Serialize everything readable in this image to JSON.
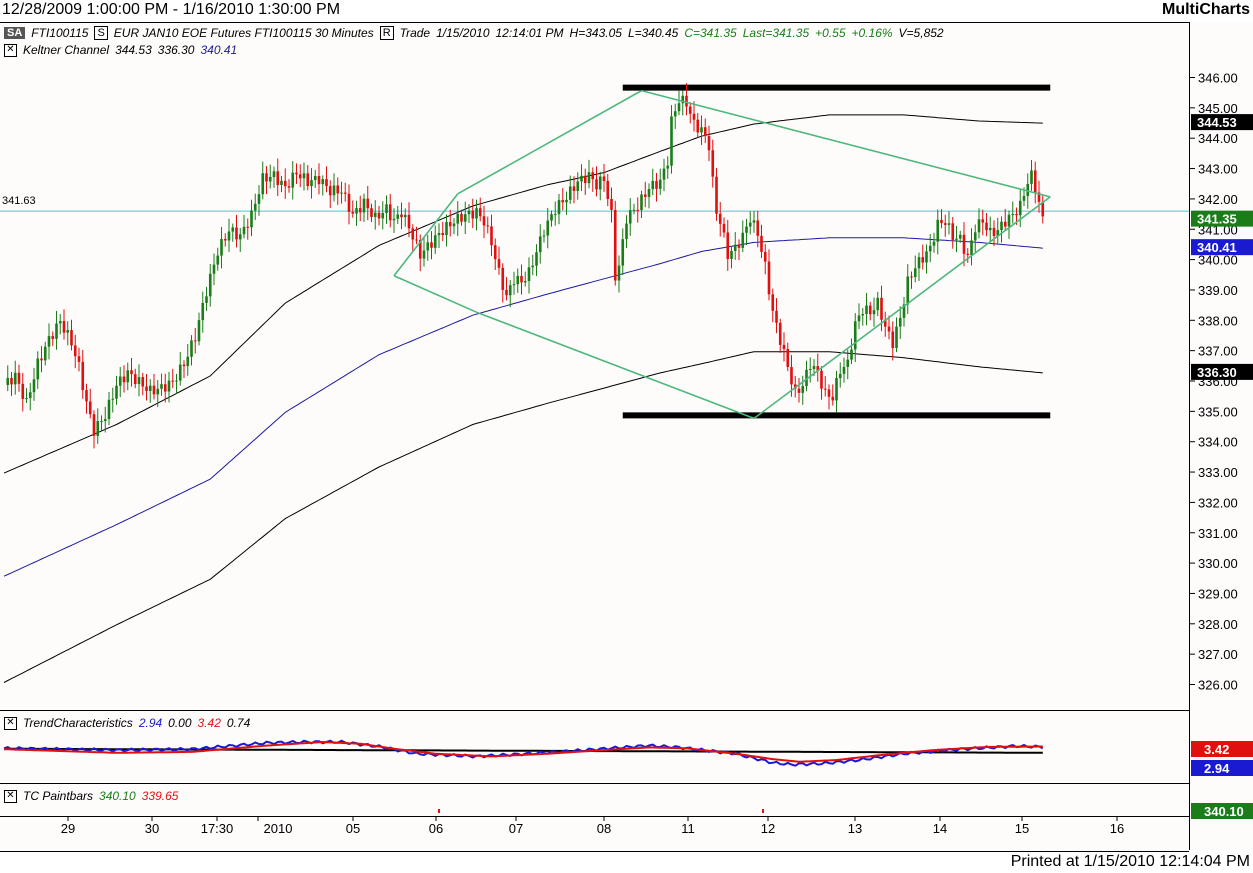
{
  "window": {
    "title_range": "12/28/2009 1:00:00 PM - 1/16/2010 1:30:00 PM",
    "app_name": "MultiCharts",
    "printed": "Printed at 1/15/2010 12:14:04 PM"
  },
  "header": {
    "sa_label": "SA",
    "symbol": "FTI100115",
    "symbol_btn": "S",
    "description": "EUR JAN10 EOE Futures FTI100115  30 Minutes",
    "range_btn": "R",
    "quote_type": "Trade",
    "quote_date": "1/15/2010",
    "quote_time": "12:14:01 PM",
    "high": "H=343.05",
    "low": "L=340.45",
    "close": "C=341.35",
    "last": "Last=341.35",
    "change": "+0.55",
    "change_pct": "+0.16%",
    "volume": "V=5,852"
  },
  "indicators": {
    "keltner": {
      "name": "Keltner Channel",
      "upper": "344.53",
      "lower": "336.30",
      "mid": "340.41"
    },
    "trend": {
      "name": "TrendCharacteristics",
      "v1": "2.94",
      "v2": "0.00",
      "v3": "3.42",
      "v4": "0.74"
    },
    "tc": {
      "name": "TC Paintbars",
      "v1": "340.10",
      "v2": "339.65"
    }
  },
  "crosshair_label": "341.63",
  "price_labels": {
    "keltner_upper": "344.53",
    "last": "341.35",
    "keltner_mid": "340.41",
    "keltner_lower": "336.30",
    "trend_red": "3.42",
    "trend_blue": "2.94",
    "tc_green": "340.10"
  },
  "colors": {
    "up": "#1a7d1a",
    "down": "#e01010",
    "keltner_mid": "#1a1aa0",
    "keltner_band": "#000000",
    "pattern": "#4cb87c",
    "crosshair": "#40d0d0",
    "trend_blue": "#1a1ad0",
    "trend_red": "#e01010"
  },
  "chart_data": {
    "type": "candlestick",
    "interval": "30 Minutes",
    "ylim": [
      325.2,
      347.0
    ],
    "yticks": [
      326,
      327,
      328,
      329,
      330,
      331,
      332,
      333,
      334,
      335,
      336,
      337,
      338,
      339,
      340,
      341,
      342,
      343,
      344,
      345,
      346
    ],
    "ytick_labels": [
      "326.00",
      "327.00",
      "328.00",
      "329.00",
      "330.00",
      "331.00",
      "332.00",
      "333.00",
      "334.00",
      "335.00",
      "336.00",
      "337.00",
      "338.00",
      "339.00",
      "340.00",
      "341.00",
      "342.00",
      "343.00",
      "344.00",
      "345.00",
      "346.00"
    ],
    "x_labels": [
      "29",
      "30",
      "17:30",
      "2010",
      "05",
      "06",
      "07",
      "08",
      "11",
      "12",
      "13",
      "14",
      "15",
      "16"
    ],
    "close_path": [
      [
        0,
        335.9
      ],
      [
        3,
        336.2
      ],
      [
        6,
        335.3
      ],
      [
        9,
        336.6
      ],
      [
        12,
        337.4
      ],
      [
        15,
        338.0
      ],
      [
        18,
        337.3
      ],
      [
        20,
        336.5
      ],
      [
        22,
        335.3
      ],
      [
        24,
        334.4
      ],
      [
        27,
        334.9
      ],
      [
        30,
        335.9
      ],
      [
        33,
        336.3
      ],
      [
        36,
        336.0
      ],
      [
        39,
        335.7
      ],
      [
        42,
        335.8
      ],
      [
        45,
        336.0
      ],
      [
        48,
        336.6
      ],
      [
        51,
        337.5
      ],
      [
        54,
        339.0
      ],
      [
        57,
        340.3
      ],
      [
        60,
        341.0
      ],
      [
        63,
        340.8
      ],
      [
        66,
        341.5
      ],
      [
        69,
        342.7
      ],
      [
        72,
        342.8
      ],
      [
        75,
        342.4
      ],
      [
        78,
        342.9
      ],
      [
        81,
        342.6
      ],
      [
        84,
        342.7
      ],
      [
        87,
        342.3
      ],
      [
        90,
        342.3
      ],
      [
        93,
        341.5
      ],
      [
        96,
        341.9
      ],
      [
        99,
        341.4
      ],
      [
        102,
        341.7
      ],
      [
        104,
        341.3
      ],
      [
        106,
        341.6
      ],
      [
        108,
        341.1
      ],
      [
        111,
        340.2
      ],
      [
        114,
        340.6
      ],
      [
        117,
        341.0
      ],
      [
        120,
        341.3
      ],
      [
        123,
        341.5
      ],
      [
        126,
        341.6
      ],
      [
        128,
        341.3
      ],
      [
        130,
        340.6
      ],
      [
        132,
        339.6
      ],
      [
        134,
        338.8
      ],
      [
        136,
        339.4
      ],
      [
        138,
        339.3
      ],
      [
        140,
        339.6
      ],
      [
        142,
        340.3
      ],
      [
        144,
        341.0
      ],
      [
        147,
        341.7
      ],
      [
        150,
        342.1
      ],
      [
        153,
        342.6
      ],
      [
        156,
        342.8
      ],
      [
        158,
        342.5
      ],
      [
        160,
        342.7
      ],
      [
        162,
        341.5
      ],
      [
        163,
        339.5
      ],
      [
        164,
        339.8
      ],
      [
        166,
        341.4
      ],
      [
        169,
        341.8
      ],
      [
        172,
        342.4
      ],
      [
        175,
        342.6
      ],
      [
        177,
        343.3
      ],
      [
        178,
        344.6
      ],
      [
        180,
        345.3
      ],
      [
        182,
        345.2
      ],
      [
        184,
        344.5
      ],
      [
        186,
        344.3
      ],
      [
        188,
        343.8
      ],
      [
        189,
        342.6
      ],
      [
        190,
        341.6
      ],
      [
        191,
        341.3
      ],
      [
        193,
        340.2
      ],
      [
        195,
        340.4
      ],
      [
        197,
        340.8
      ],
      [
        199,
        341.4
      ],
      [
        201,
        340.9
      ],
      [
        203,
        339.8
      ],
      [
        205,
        338.3
      ],
      [
        207,
        337.4
      ],
      [
        209,
        336.5
      ],
      [
        211,
        335.6
      ],
      [
        213,
        335.9
      ],
      [
        215,
        336.6
      ],
      [
        217,
        336.3
      ],
      [
        219,
        335.6
      ],
      [
        221,
        335.5
      ],
      [
        223,
        336.4
      ],
      [
        225,
        336.6
      ],
      [
        227,
        337.9
      ],
      [
        229,
        338.4
      ],
      [
        231,
        338.3
      ],
      [
        233,
        338.6
      ],
      [
        235,
        337.8
      ],
      [
        237,
        337.3
      ],
      [
        239,
        338.1
      ],
      [
        241,
        339.3
      ],
      [
        243,
        339.8
      ],
      [
        245,
        340.1
      ],
      [
        247,
        340.4
      ],
      [
        249,
        341.2
      ],
      [
        251,
        341.3
      ],
      [
        253,
        340.8
      ],
      [
        255,
        340.7
      ],
      [
        257,
        340.1
      ],
      [
        259,
        341.1
      ],
      [
        261,
        341.3
      ],
      [
        263,
        340.9
      ],
      [
        265,
        341.0
      ],
      [
        267,
        341.3
      ],
      [
        269,
        341.5
      ],
      [
        271,
        341.8
      ],
      [
        273,
        342.6
      ],
      [
        274,
        342.8
      ],
      [
        275,
        342.4
      ],
      [
        276,
        341.9
      ],
      [
        277,
        341.35
      ]
    ],
    "keltner": {
      "upper": [
        [
          0,
          333.0
        ],
        [
          30,
          334.6
        ],
        [
          55,
          336.2
        ],
        [
          75,
          338.6
        ],
        [
          100,
          340.5
        ],
        [
          125,
          341.8
        ],
        [
          145,
          342.5
        ],
        [
          160,
          342.9
        ],
        [
          175,
          343.6
        ],
        [
          186,
          344.1
        ],
        [
          200,
          344.5
        ],
        [
          220,
          344.8
        ],
        [
          240,
          344.8
        ],
        [
          260,
          344.6
        ],
        [
          277,
          344.53
        ]
      ],
      "mid": [
        [
          0,
          329.6
        ],
        [
          30,
          331.3
        ],
        [
          55,
          332.8
        ],
        [
          75,
          335.0
        ],
        [
          100,
          336.9
        ],
        [
          125,
          338.2
        ],
        [
          145,
          338.9
        ],
        [
          160,
          339.4
        ],
        [
          175,
          339.9
        ],
        [
          186,
          340.3
        ],
        [
          200,
          340.6
        ],
        [
          220,
          340.75
        ],
        [
          240,
          340.75
        ],
        [
          260,
          340.6
        ],
        [
          277,
          340.41
        ]
      ],
      "lower": [
        [
          0,
          326.1
        ],
        [
          30,
          328.0
        ],
        [
          55,
          329.5
        ],
        [
          75,
          331.5
        ],
        [
          100,
          333.2
        ],
        [
          125,
          334.6
        ],
        [
          145,
          335.3
        ],
        [
          160,
          335.8
        ],
        [
          175,
          336.3
        ],
        [
          186,
          336.6
        ],
        [
          200,
          337.0
        ],
        [
          220,
          337.0
        ],
        [
          240,
          336.8
        ],
        [
          260,
          336.5
        ],
        [
          277,
          336.3
        ]
      ]
    },
    "pattern_lines": [
      [
        [
          104,
          339.5
        ],
        [
          126,
          338.3
        ]
      ],
      [
        [
          126,
          338.3
        ],
        [
          200,
          334.8
        ]
      ],
      [
        [
          104,
          339.5
        ],
        [
          121,
          342.2
        ]
      ],
      [
        [
          121,
          342.2
        ],
        [
          170,
          345.6
        ]
      ],
      [
        [
          170,
          345.6
        ],
        [
          279,
          342.1
        ]
      ],
      [
        [
          200,
          334.8
        ],
        [
          279,
          342.1
        ]
      ]
    ],
    "levels": [
      [
        165,
        279,
        345.7
      ],
      [
        165,
        279,
        334.9
      ]
    ],
    "crosshair_y": 341.63,
    "trend": {
      "blue": [
        [
          0,
          0.3
        ],
        [
          30,
          0.1
        ],
        [
          50,
          0.2
        ],
        [
          70,
          0.9
        ],
        [
          80,
          1.0
        ],
        [
          90,
          1.0
        ],
        [
          100,
          0.5
        ],
        [
          110,
          -0.3
        ],
        [
          126,
          -0.6
        ],
        [
          140,
          -0.3
        ],
        [
          155,
          0.1
        ],
        [
          165,
          0.4
        ],
        [
          172,
          0.6
        ],
        [
          180,
          0.4
        ],
        [
          195,
          -0.3
        ],
        [
          205,
          -1.3
        ],
        [
          210,
          -1.5
        ],
        [
          218,
          -1.4
        ],
        [
          228,
          -1.0
        ],
        [
          240,
          -0.3
        ],
        [
          255,
          0.2
        ],
        [
          270,
          0.55
        ],
        [
          277,
          0.45
        ]
      ],
      "red": [
        [
          0,
          0.2
        ],
        [
          30,
          -0.2
        ],
        [
          50,
          -0.1
        ],
        [
          70,
          0.6
        ],
        [
          85,
          1.0
        ],
        [
          95,
          0.8
        ],
        [
          105,
          0.2
        ],
        [
          115,
          -0.3
        ],
        [
          130,
          -0.6
        ],
        [
          145,
          -0.3
        ],
        [
          160,
          0.1
        ],
        [
          172,
          0.4
        ],
        [
          182,
          0.3
        ],
        [
          195,
          -0.3
        ],
        [
          205,
          -0.9
        ],
        [
          212,
          -1.2
        ],
        [
          222,
          -1.0
        ],
        [
          235,
          -0.4
        ],
        [
          248,
          0.1
        ],
        [
          262,
          0.45
        ],
        [
          277,
          0.5
        ]
      ],
      "black": [
        [
          0,
          0.25
        ],
        [
          277,
          -0.2
        ]
      ]
    }
  }
}
